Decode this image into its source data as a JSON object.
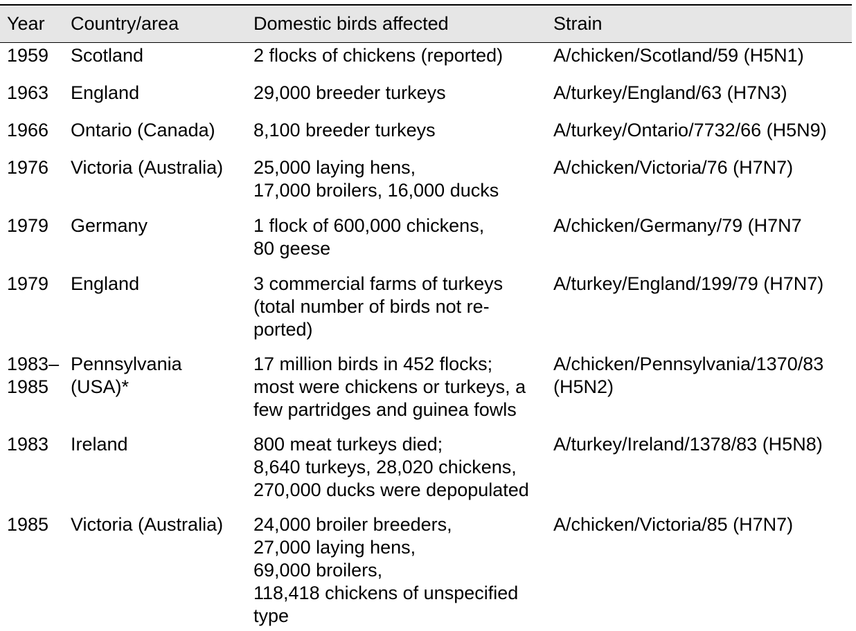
{
  "table": {
    "headers": {
      "year": "Year",
      "country": "Country/area",
      "birds": "Domestic birds affected",
      "strain": "Strain"
    },
    "rows": [
      {
        "year": [
          "1959"
        ],
        "country": [
          "Scotland"
        ],
        "birds": [
          "2 flocks of chickens (reported)"
        ],
        "strain": [
          "A/chicken/Scotland/59 (H5N1)"
        ]
      },
      {
        "year": [
          "1963"
        ],
        "country": [
          "England"
        ],
        "birds": [
          "29,000 breeder turkeys"
        ],
        "strain": [
          "A/turkey/England/63 (H7N3)"
        ]
      },
      {
        "year": [
          "1966"
        ],
        "country": [
          "Ontario (Canada)"
        ],
        "birds": [
          "8,100 breeder turkeys"
        ],
        "strain": [
          "A/turkey/Ontario/7732/66 (H5N9)"
        ]
      },
      {
        "year": [
          "1976"
        ],
        "country": [
          "Victoria (Australia)"
        ],
        "birds": [
          "25,000 laying hens,",
          "17,000 broilers, 16,000 ducks"
        ],
        "strain": [
          "A/chicken/Victoria/76 (H7N7)"
        ]
      },
      {
        "year": [
          "1979"
        ],
        "country": [
          "Germany"
        ],
        "birds": [
          "1 flock of 600,000 chickens,",
          "80 geese"
        ],
        "strain": [
          "A/chicken/Germany/79 (H7N7"
        ]
      },
      {
        "year": [
          "1979"
        ],
        "country": [
          "England"
        ],
        "birds": [
          "3 commercial farms of turkeys",
          "(total number of birds not re-",
          "ported)"
        ],
        "strain": [
          "A/turkey/England/199/79 (H7N7)"
        ]
      },
      {
        "year": [
          "1983–",
          "1985"
        ],
        "country": [
          "Pennsylvania",
          "(USA)*"
        ],
        "birds": [
          "17 million birds in 452 flocks;",
          "most were chickens or turkeys, a",
          "few partridges and guinea fowls"
        ],
        "strain": [
          "A/chicken/Pennsylvania/1370/83",
          "(H5N2)"
        ]
      },
      {
        "year": [
          "1983"
        ],
        "country": [
          "Ireland"
        ],
        "birds": [
          "800 meat turkeys died;",
          "8,640 turkeys, 28,020 chickens,",
          "270,000 ducks were depopulated"
        ],
        "strain": [
          "A/turkey/Ireland/1378/83 (H5N8)"
        ]
      },
      {
        "year": [
          "1985"
        ],
        "country": [
          "Victoria (Australia)"
        ],
        "birds": [
          "24,000 broiler breeders,",
          "27,000 laying hens,",
          "69,000 broilers,",
          "118,418 chickens of unspecified",
          "type"
        ],
        "strain": [
          "A/chicken/Victoria/85 (H7N7)"
        ]
      }
    ]
  }
}
